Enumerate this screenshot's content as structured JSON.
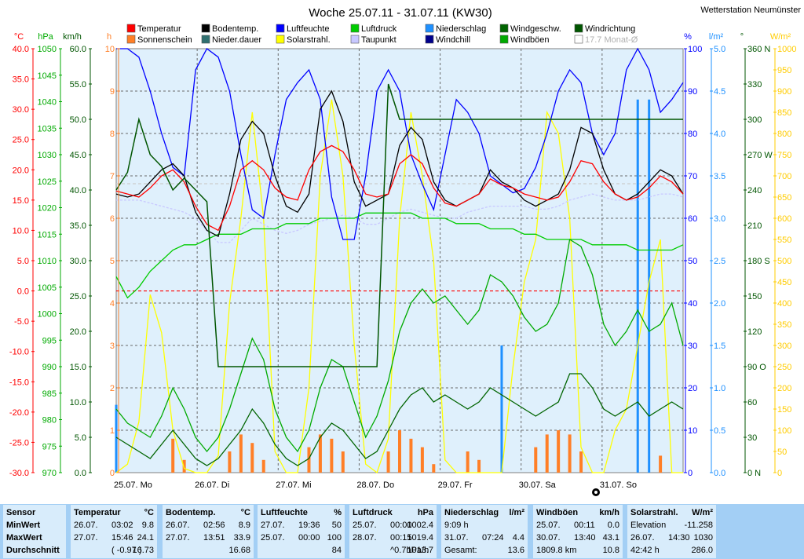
{
  "chart_data": {
    "type": "line",
    "title": "Woche 25.07.11 - 31.07.11 (KW30)",
    "station": "Wetterstation Neumünster",
    "x_labels": [
      "25.07. Mo",
      "26.07. Di",
      "27.07. Mi",
      "28.07. Do",
      "29.07. Fr",
      "30.07. Sa",
      "31.07. So"
    ],
    "legend": [
      {
        "name": "Temperatur",
        "color": "#ff0000"
      },
      {
        "name": "Bodentemp.",
        "color": "#000000"
      },
      {
        "name": "Luftfeuchte",
        "color": "#0000ff"
      },
      {
        "name": "Luftdruck",
        "color": "#00cc00"
      },
      {
        "name": "Niederschlag",
        "color": "#1e90ff"
      },
      {
        "name": "Windgeschw.",
        "color": "#006400"
      },
      {
        "name": "Windrichtung",
        "color": "#005500"
      },
      {
        "name": "Sonnenschein",
        "color": "#ff7f27"
      },
      {
        "name": "Nieder.dauer",
        "color": "#2f6f6f"
      },
      {
        "name": "Solarstrahl.",
        "color": "#ffff00"
      },
      {
        "name": "Taupunkt",
        "color": "#c8c8ff"
      },
      {
        "name": "Windchill",
        "color": "#00008b"
      },
      {
        "name": "Windböen",
        "color": "#00aa00"
      },
      {
        "name": "17.7 Monat-Ø",
        "color": "#cccccc"
      }
    ],
    "axes": {
      "temp": {
        "unit": "°C",
        "ticks": [
          "40.0",
          "35.0",
          "30.0",
          "25.0",
          "20.0",
          "15.0",
          "10.0",
          "5.0",
          "0.0",
          "-5.0",
          "-10.0",
          "-15.0",
          "-20.0",
          "-25.0",
          "-30.0"
        ],
        "color": "#ff0000",
        "range": [
          -30,
          40
        ]
      },
      "pressure": {
        "unit": "hPa",
        "ticks": [
          "1050",
          "1045",
          "1040",
          "1035",
          "1030",
          "1025",
          "1020",
          "1015",
          "1010",
          "1005",
          "1000",
          "995",
          "990",
          "985",
          "980",
          "975",
          "970"
        ],
        "color": "#00aa00",
        "range": [
          970,
          1050
        ]
      },
      "wind": {
        "unit": "km/h",
        "ticks": [
          "60.0",
          "55.0",
          "50.0",
          "45.0",
          "40.0",
          "35.0",
          "30.0",
          "25.0",
          "20.0",
          "15.0",
          "10.0",
          "5.0",
          "0.0"
        ],
        "color": "#005500",
        "range": [
          0,
          60
        ]
      },
      "hours": {
        "unit": "h",
        "ticks": [
          "10",
          "9",
          "8",
          "7",
          "6",
          "5",
          "4",
          "3",
          "2",
          "1",
          "0"
        ],
        "color": "#ff7f27",
        "range": [
          0,
          10
        ]
      },
      "humidity": {
        "unit": "%",
        "ticks": [
          "100",
          "90",
          "80",
          "70",
          "60",
          "50",
          "40",
          "30",
          "20",
          "10",
          "0"
        ],
        "color": "#0000ff",
        "range": [
          0,
          100
        ]
      },
      "rain": {
        "unit": "l/m²",
        "ticks": [
          "5.0",
          "4.5",
          "4.0",
          "3.5",
          "3.0",
          "2.5",
          "2.0",
          "1.5",
          "1.0",
          "0.5",
          "0.0"
        ],
        "color": "#1e90ff",
        "range": [
          0,
          5
        ]
      },
      "direction": {
        "unit": "°",
        "ticks": [
          "360 N",
          "330",
          "300",
          "270 W",
          "240",
          "210",
          "180 S",
          "150",
          "120",
          "90 O",
          "60",
          "30",
          "0 N"
        ],
        "color": "#005500"
      },
      "solar": {
        "unit": "W/m²",
        "ticks": [
          "1000",
          "950",
          "900",
          "850",
          "800",
          "750",
          "700",
          "650",
          "600",
          "550",
          "500",
          "450",
          "400",
          "350",
          "300",
          "250",
          "200",
          "150",
          "100",
          "50",
          "0"
        ],
        "color": "#ffcc00",
        "range": [
          0,
          1000
        ]
      }
    },
    "series": [
      {
        "name": "Temperatur",
        "values": [
          16.5,
          16,
          15.5,
          17,
          19,
          20,
          18,
          14,
          11,
          10,
          14,
          20,
          21.5,
          20,
          17,
          15.5,
          15,
          20,
          23,
          24,
          23,
          20,
          16,
          15.5,
          16,
          21,
          22.5,
          21,
          17,
          14.5,
          14,
          15,
          16,
          18.5,
          17.5,
          17,
          16,
          15.5,
          15,
          15.5,
          18,
          21.5,
          21,
          18,
          16,
          15,
          15.5,
          17,
          19,
          18,
          16
        ]
      },
      {
        "name": "Bodentemp.",
        "values": [
          16,
          15.5,
          16,
          18,
          20,
          21,
          19,
          13,
          10,
          9,
          16,
          25,
          28,
          26,
          19,
          14,
          13,
          16,
          30,
          33,
          28,
          18,
          14,
          15,
          16,
          24,
          27,
          25,
          18,
          15,
          14,
          15,
          16,
          20,
          18,
          17,
          15,
          14,
          15,
          16,
          20,
          27,
          26,
          20,
          16,
          15,
          16,
          18,
          20,
          19,
          16
        ]
      },
      {
        "name": "Luftfeuchte",
        "values": [
          100,
          100,
          98,
          90,
          80,
          72,
          70,
          95,
          100,
          98,
          90,
          75,
          62,
          60,
          75,
          88,
          92,
          95,
          88,
          65,
          55,
          55,
          70,
          90,
          95,
          90,
          75,
          68,
          62,
          75,
          88,
          85,
          80,
          70,
          68,
          66,
          67,
          72,
          80,
          90,
          95,
          92,
          80,
          75,
          80,
          95,
          100,
          95,
          85,
          88,
          92
        ]
      },
      {
        "name": "Luftdruck",
        "values": [
          1007,
          1003,
          1005,
          1008,
          1010,
          1012,
          1013,
          1013,
          1014,
          1015,
          1015,
          1015,
          1016,
          1016,
          1016,
          1017,
          1017,
          1017,
          1018,
          1018,
          1018,
          1018,
          1019,
          1019,
          1019,
          1019,
          1019,
          1018,
          1018,
          1018,
          1017,
          1017,
          1017,
          1016,
          1016,
          1016,
          1015,
          1015,
          1014,
          1014,
          1014,
          1014,
          1013,
          1013,
          1013,
          1013,
          1012,
          1012,
          1012,
          1012,
          1013
        ]
      },
      {
        "name": "Niederschlag",
        "values": [
          0.8,
          0,
          0,
          0,
          0,
          0,
          0,
          0,
          0,
          0,
          0,
          0,
          0,
          0,
          0,
          0,
          0,
          0,
          0,
          0,
          0,
          0,
          0,
          0,
          0,
          0,
          0,
          0,
          0,
          0,
          0,
          0,
          0,
          0,
          1.5,
          0,
          0,
          0,
          0,
          0,
          0,
          0,
          0,
          0,
          0,
          0,
          4.4,
          4.4,
          0,
          0,
          0
        ]
      },
      {
        "name": "Windgeschw.",
        "values": [
          5,
          4,
          3,
          2,
          4,
          6,
          4,
          2,
          1,
          2,
          4,
          6,
          9,
          7,
          4,
          2,
          1,
          2,
          5,
          7,
          6,
          4,
          2,
          3,
          6,
          9,
          11,
          12,
          10,
          11,
          10,
          9,
          10,
          12,
          11,
          10,
          9,
          8,
          9,
          10,
          14,
          14,
          12,
          9,
          8,
          9,
          10,
          8,
          9,
          10,
          9
        ]
      },
      {
        "name": "Windrichtung",
        "values": [
          240,
          255,
          300,
          270,
          260,
          240,
          250,
          240,
          230,
          90,
          90,
          90,
          90,
          90,
          90,
          90,
          90,
          90,
          90,
          90,
          90,
          90,
          90,
          90,
          330,
          300,
          300,
          300,
          300,
          300,
          300,
          300,
          300,
          300,
          300,
          300,
          300,
          300,
          300,
          300,
          300,
          300,
          300,
          300,
          300,
          300,
          300,
          300,
          300,
          300,
          300
        ]
      },
      {
        "name": "Sonnenschein",
        "values": [
          0,
          0,
          0,
          0,
          0,
          0.8,
          0.3,
          0,
          0,
          0,
          0.5,
          0.9,
          0.7,
          0.3,
          0,
          0,
          0,
          0.6,
          0.9,
          0.8,
          0.5,
          0,
          0,
          0,
          0.5,
          1,
          0.8,
          0.6,
          0.2,
          0,
          0,
          0.5,
          0.3,
          0,
          0,
          0,
          0,
          0.6,
          0.9,
          1,
          0.9,
          0.5,
          0,
          0,
          0,
          0,
          0,
          0,
          0.4,
          0,
          0
        ]
      },
      {
        "name": "Solarstrahl.",
        "values": [
          0,
          20,
          120,
          420,
          330,
          100,
          10,
          0,
          0,
          40,
          400,
          600,
          850,
          600,
          50,
          0,
          0,
          200,
          700,
          880,
          700,
          300,
          20,
          0,
          80,
          600,
          850,
          700,
          500,
          30,
          0,
          0,
          0,
          0,
          0,
          250,
          450,
          550,
          850,
          800,
          600,
          60,
          0,
          0,
          100,
          150,
          300,
          450,
          550,
          0,
          0
        ]
      },
      {
        "name": "Taupunkt",
        "values": [
          15,
          15,
          15,
          14.5,
          14,
          13.5,
          13,
          12,
          10,
          8,
          8,
          10,
          12,
          11,
          10,
          9.5,
          10,
          11,
          11.5,
          12,
          12.5,
          12,
          11,
          11,
          12,
          13,
          13.5,
          13,
          12.5,
          12,
          12,
          13,
          13.5,
          14,
          14,
          14,
          14,
          13.5,
          13.5,
          14,
          15,
          15.5,
          16,
          15.5,
          15,
          15,
          15,
          15.5,
          16,
          16,
          15.5
        ]
      },
      {
        "name": "Windböen",
        "values": [
          9,
          7,
          6,
          5,
          8,
          12,
          9,
          5,
          3,
          5,
          9,
          14,
          19,
          16,
          9,
          5,
          3,
          6,
          12,
          16,
          15,
          10,
          5,
          8,
          13,
          20,
          24,
          26,
          24,
          25,
          23,
          21,
          23,
          28,
          27,
          25,
          22,
          20,
          21,
          24,
          33,
          32,
          28,
          21,
          18,
          20,
          23,
          20,
          21,
          24,
          18
        ]
      }
    ],
    "reference_lines": [
      {
        "name": "0 °C",
        "value": 0,
        "axis": "temp",
        "color": "#ff0000"
      },
      {
        "name": "17.7 Monat-Ø",
        "value": 17.7,
        "axis": "temp",
        "color": "#cccccc"
      }
    ]
  },
  "stats_table": {
    "columns": [
      {
        "key": "sensor",
        "header": "Sensor",
        "unit": "",
        "rows": [
          "MinWert",
          "MaxWert",
          "Durchschnitt"
        ]
      },
      {
        "key": "temp",
        "header": "Temperatur",
        "unit": "°C",
        "rows": [
          [
            "26.07.",
            "03:02",
            "9.8"
          ],
          [
            "27.07.",
            "15:46",
            "24.1"
          ],
          [
            "",
            "( -0.97 )",
            "16.73"
          ]
        ]
      },
      {
        "key": "boden",
        "header": "Bodentemp.",
        "unit": "°C",
        "rows": [
          [
            "26.07.",
            "02:56",
            "8.9"
          ],
          [
            "27.07.",
            "13:51",
            "33.9"
          ],
          [
            "",
            "",
            "16.68"
          ]
        ]
      },
      {
        "key": "feuchte",
        "header": "Luftfeuchte",
        "unit": "%",
        "rows": [
          [
            "27.07.",
            "19:36",
            "50"
          ],
          [
            "25.07.",
            "00:00",
            "100"
          ],
          [
            "",
            "",
            "84"
          ]
        ]
      },
      {
        "key": "druck",
        "header": "Luftdruck",
        "unit": "hPa",
        "rows": [
          [
            "25.07.",
            "00:00",
            "1002.4"
          ],
          [
            "28.07.",
            "00:15",
            "1019.4"
          ],
          [
            "",
            "^0.7hPa/h",
            "1013.7"
          ]
        ]
      },
      {
        "key": "regen",
        "header": "Niederschlag",
        "unit": "l/m²",
        "rows": [
          [
            "9:09 h",
            "",
            ""
          ],
          [
            "31.07.",
            "07:24",
            "4.4"
          ],
          [
            "Gesamt:",
            "",
            "13.6"
          ]
        ]
      },
      {
        "key": "boen",
        "header": "Windböen",
        "unit": "km/h",
        "rows": [
          [
            "25.07.",
            "00:11",
            "0.0"
          ],
          [
            "30.07.",
            "13:40",
            "43.1"
          ],
          [
            "1809.8 km",
            "",
            "10.8"
          ]
        ]
      },
      {
        "key": "solar",
        "header": "Solarstrahl.",
        "unit": "W/m²",
        "rows": [
          [
            "Elevation",
            "",
            "-11.258"
          ],
          [
            "26.07.",
            "14:30",
            "1030"
          ],
          [
            "42:42 h",
            "",
            "286.0"
          ]
        ]
      }
    ]
  }
}
